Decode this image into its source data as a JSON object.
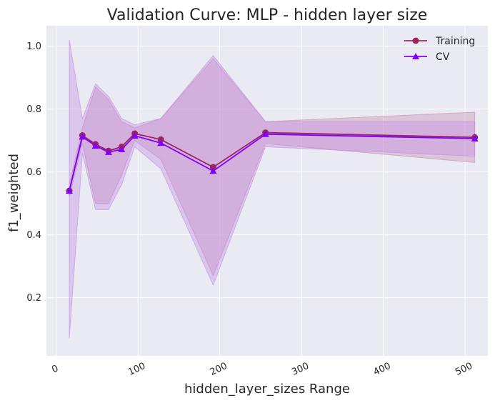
{
  "chart_data": {
    "type": "line",
    "title": "Validation Curve: MLP - hidden layer size",
    "xlabel": "hidden_layer_sizes Range",
    "ylabel": "f1_weighted",
    "xlim": [
      -12,
      528
    ],
    "ylim": [
      0.015,
      1.065
    ],
    "xticks": [
      0,
      100,
      200,
      300,
      400,
      500
    ],
    "xtick_labels": [
      "0",
      "100",
      "200",
      "300",
      "400",
      "500"
    ],
    "yticks": [
      0.2,
      0.4,
      0.6,
      0.8,
      1.0
    ],
    "ytick_labels": [
      "0.2",
      "0.4",
      "0.6",
      "0.8",
      "1.0"
    ],
    "grid": true,
    "background": "#eaeaf2",
    "legend_position": "top-right",
    "x": [
      16,
      32,
      48,
      64,
      80,
      96,
      128,
      192,
      256,
      512
    ],
    "series": [
      {
        "name": "Training",
        "marker": "circle",
        "color": "#9c2460",
        "values": [
          0.54,
          0.716,
          0.688,
          0.667,
          0.68,
          0.722,
          0.703,
          0.615,
          0.725,
          0.71
        ],
        "band_lower": [
          0.52,
          0.69,
          0.5,
          0.5,
          0.59,
          0.7,
          0.64,
          0.27,
          0.69,
          0.63
        ],
        "band_upper": [
          0.56,
          0.74,
          0.87,
          0.83,
          0.76,
          0.74,
          0.77,
          0.96,
          0.76,
          0.79
        ],
        "band_color": "#c98ab0"
      },
      {
        "name": "CV",
        "marker": "triangle",
        "color": "#8000ff",
        "values": [
          0.54,
          0.712,
          0.683,
          0.663,
          0.672,
          0.715,
          0.692,
          0.603,
          0.72,
          0.706
        ],
        "band_lower": [
          0.07,
          0.66,
          0.48,
          0.48,
          0.56,
          0.68,
          0.61,
          0.24,
          0.68,
          0.65
        ],
        "band_upper": [
          1.02,
          0.77,
          0.88,
          0.84,
          0.77,
          0.75,
          0.77,
          0.97,
          0.76,
          0.76
        ],
        "band_color": "#c08ce6"
      }
    ]
  }
}
